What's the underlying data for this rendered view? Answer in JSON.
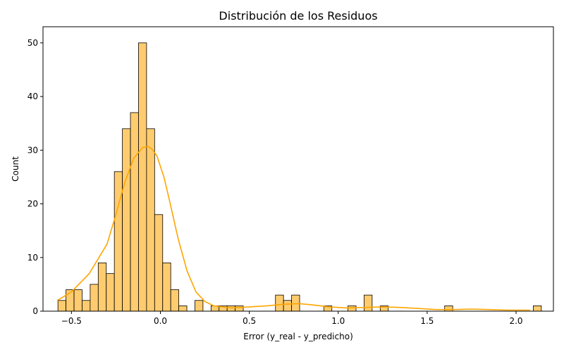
{
  "chart_data": {
    "type": "histogram",
    "title": "Distribución de los Residuos",
    "xlabel": "Error (y_real - y_predicho)",
    "ylabel": "Count",
    "xlim": [
      -0.66,
      2.21
    ],
    "ylim": [
      0,
      53
    ],
    "xticks": [
      -0.5,
      0.0,
      0.5,
      1.0,
      1.5,
      2.0
    ],
    "xtick_labels": [
      "−0.5",
      "0.0",
      "0.5",
      "1.0",
      "1.5",
      "2.0"
    ],
    "yticks": [
      0,
      10,
      20,
      30,
      40,
      50
    ],
    "ytick_labels": [
      "0",
      "10",
      "20",
      "30",
      "40",
      "50"
    ],
    "grid": false,
    "bin_start": -0.576,
    "bin_width": 0.0453,
    "counts": [
      2,
      4,
      4,
      2,
      5,
      9,
      7,
      26,
      34,
      37,
      50,
      34,
      18,
      9,
      4,
      1,
      0,
      2,
      0,
      1,
      1,
      1,
      1,
      0,
      0,
      0,
      0,
      3,
      2,
      3,
      0,
      0,
      0,
      1,
      0,
      0,
      1,
      0,
      3,
      0,
      1,
      0,
      0,
      0,
      0,
      0,
      0,
      0,
      1,
      0,
      0,
      0,
      0,
      0,
      0,
      0,
      0,
      0,
      0,
      1
    ],
    "kde": {
      "x": [
        -0.58,
        -0.5,
        -0.4,
        -0.3,
        -0.25,
        -0.2,
        -0.15,
        -0.1,
        -0.07,
        -0.05,
        -0.02,
        0.02,
        0.05,
        0.1,
        0.15,
        0.2,
        0.25,
        0.3,
        0.4,
        0.5,
        0.6,
        0.7,
        0.78,
        0.85,
        0.95,
        1.05,
        1.15,
        1.25,
        1.35,
        1.45,
        1.55,
        1.65,
        1.75,
        1.85,
        1.95,
        2.08
      ],
      "y": [
        2.0,
        3.6,
        7.0,
        12.5,
        18.0,
        24.0,
        28.5,
        30.5,
        30.7,
        30.3,
        29.0,
        25.0,
        20.8,
        13.5,
        7.5,
        3.6,
        1.8,
        1.0,
        0.6,
        0.8,
        1.0,
        1.3,
        1.4,
        1.2,
        0.8,
        0.6,
        0.7,
        0.8,
        0.7,
        0.5,
        0.3,
        0.3,
        0.4,
        0.3,
        0.2,
        0.2
      ]
    },
    "colors": {
      "bar_fill": "#fecc6f",
      "bar_edge": "#000000",
      "kde_line": "#ffa500"
    }
  }
}
